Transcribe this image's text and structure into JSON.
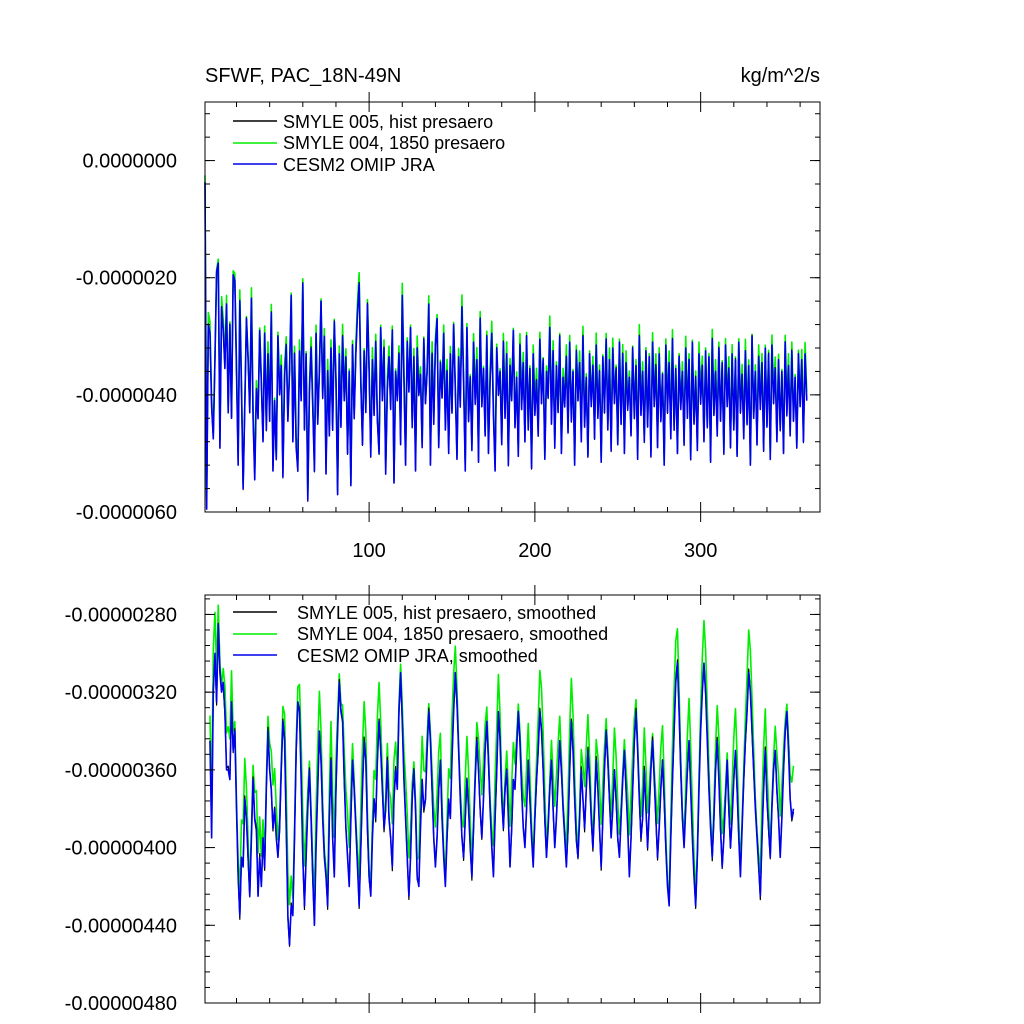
{
  "chart_data": [
    {
      "type": "line",
      "title": "SFWF, PAC_18N-49N",
      "units_label": "kg/m^2/s",
      "xlim": [
        1,
        372
      ],
      "ylim": [
        -6e-06,
        1e-06
      ],
      "x_ticks": [
        100,
        200,
        300
      ],
      "x_tick_labels": [
        "100",
        "200",
        "300"
      ],
      "y_ticks": [
        0,
        -2e-06,
        -4e-06,
        -6e-06
      ],
      "y_tick_labels": [
        "0.0000000",
        "-0.0000020",
        "-0.0000040",
        "-0.0000060"
      ],
      "grid": false,
      "legend_position": "top-left",
      "series": [
        {
          "name": "SMYLE 005, hist presaero",
          "color": "#000000"
        },
        {
          "name": "SMYLE 004, 1850 presaero",
          "color": "#00ee00"
        },
        {
          "name": "CESM2 OMIP JRA",
          "color": "#0000ee"
        }
      ],
      "x_start": 1,
      "values": [
        -3.7e-07,
        -5.95e-06,
        -2.8e-06,
        -2.95e-06,
        -4.2e-06,
        -4.75e-06,
        -3.4e-06,
        -1.9e-06,
        -1.75e-06,
        -4.9e-06,
        -2.5e-06,
        -2.9e-06,
        -3.55e-06,
        -2.45e-06,
        -4.3e-06,
        -2.8e-06,
        -4.4e-06,
        -1.95e-06,
        -2.05e-06,
        -3.6e-06,
        -5.2e-06,
        -2.4e-06,
        -3.9e-06,
        -5.6e-06,
        -4.2e-06,
        -2.7e-06,
        -3.4e-06,
        -4.3e-06,
        -2.35e-06,
        -4.4e-06,
        -5.45e-06,
        -3.9e-06,
        -4.4e-06,
        -2.9e-06,
        -3.8e-06,
        -4.8e-06,
        -2.95e-06,
        -4.6e-06,
        -3.3e-06,
        -4.45e-06,
        -2.6e-06,
        -5.3e-06,
        -4.1e-06,
        -5.1e-06,
        -3e-06,
        -4e-06,
        -3.5e-06,
        -5.4e-06,
        -3.7e-06,
        -3.15e-06,
        -4.45e-06,
        -3.6e-06,
        -2.3e-06,
        -4.8e-06,
        -3.3e-06,
        -4.9e-06,
        -5.3e-06,
        -3.25e-06,
        -4.1e-06,
        -2.1e-06,
        -4.6e-06,
        -3.3e-06,
        -5.8e-06,
        -3.95e-06,
        -3.2e-06,
        -4.2e-06,
        -5.3e-06,
        -2.95e-06,
        -4.5e-06,
        -3.6e-06,
        -2.4e-06,
        -4.05e-06,
        -3e-06,
        -5.35e-06,
        -3.6e-06,
        -4.7e-06,
        -3.2e-06,
        -4.6e-06,
        -2.75e-06,
        -3.75e-06,
        -5.7e-06,
        -3.3e-06,
        -4.55e-06,
        -3e-06,
        -4.1e-06,
        -3.35e-06,
        -5e-06,
        -3.6e-06,
        -5.55e-06,
        -3.15e-06,
        -4.4e-06,
        -3.3e-06,
        -2.6e-06,
        -2.1e-06,
        -3.8e-06,
        -4.85e-06,
        -3.25e-06,
        -4.3e-06,
        -2.45e-06,
        -3.6e-06,
        -5.05e-06,
        -3.4e-06,
        -4.35e-06,
        -3.1e-06,
        -4.45e-06,
        -5e-06,
        -2.85e-06,
        -4.1e-06,
        -3.2e-06,
        -5.35e-06,
        -3.9e-06,
        -3.35e-06,
        -4.25e-06,
        -2.9e-06,
        -5.5e-06,
        -3.6e-06,
        -4.1e-06,
        -3.3e-06,
        -4.85e-06,
        -2.3e-06,
        -3.7e-06,
        -5.2e-06,
        -3.1e-06,
        -3.95e-06,
        -2.85e-06,
        -4.55e-06,
        -3.35e-06,
        -5.3e-06,
        -3.2e-06,
        -4e-06,
        -3.65e-06,
        -4.9e-06,
        -3.05e-06,
        -4.15e-06,
        -3.6e-06,
        -2.45e-06,
        -5.2e-06,
        -3.3e-06,
        -4.5e-06,
        -3.15e-06,
        -2.7e-06,
        -4.9e-06,
        -3.45e-06,
        -4.05e-06,
        -2.95e-06,
        -4.6e-06,
        -3.6e-06,
        -5e-06,
        -3.3e-06,
        -4.3e-06,
        -2.8e-06,
        -3.9e-06,
        -5.1e-06,
        -3.35e-06,
        -4.2e-06,
        -2.5e-06,
        -3.8e-06,
        -5.3e-06,
        -2.85e-06,
        -4.45e-06,
        -3.7e-06,
        -4.95e-06,
        -3.1e-06,
        -4.15e-06,
        -3.4e-06,
        -5.15e-06,
        -2.7e-06,
        -4.2e-06,
        -3.55e-06,
        -4.7e-06,
        -3e-06,
        -5e-06,
        -3.75e-06,
        -2.95e-06,
        -4.35e-06,
        -5.3e-06,
        -3.2e-06,
        -4e-06,
        -3.6e-06,
        -4.85e-06,
        -3.1e-06,
        -4.4e-06,
        -3.3e-06,
        -5.2e-06,
        -3.5e-06,
        -4.1e-06,
        -2.9e-06,
        -4.55e-06,
        -3.7e-06,
        -5.05e-06,
        -3.15e-06,
        -4.25e-06,
        -3.45e-06,
        -4.8e-06,
        -3e-06,
        -4.6e-06,
        -3.55e-06,
        -5.25e-06,
        -3.3e-06,
        -4.35e-06,
        -3.75e-06,
        -4.7e-06,
        -3.05e-06,
        -4.15e-06,
        -3.4e-06,
        -5.1e-06,
        -3.6e-06,
        -4.05e-06,
        -2.85e-06,
        -4.5e-06,
        -3.25e-06,
        -4.9e-06,
        -3.5e-06,
        -4.3e-06,
        -3e-06,
        -5e-06,
        -3.7e-06,
        -4.2e-06,
        -3.35e-06,
        -4.65e-06,
        -3.1e-06,
        -4.45e-06,
        -3.6e-06,
        -5.2e-06,
        -3.25e-06,
        -4.1e-06,
        -3.45e-06,
        -4.8e-06,
        -3e-06,
        -4.55e-06,
        -3.7e-06,
        -5.05e-06,
        -3.3e-06,
        -4.2e-06,
        -3.5e-06,
        -4.75e-06,
        -3.15e-06,
        -4.4e-06,
        -3.6e-06,
        -5.15e-06,
        -3.35e-06,
        -4.3e-06,
        -3.05e-06,
        -4.6e-06,
        -3.4e-06,
        -4.95e-06,
        -3.2e-06,
        -4.15e-06,
        -3.55e-06,
        -4.85e-06,
        -3.1e-06,
        -4.5e-06,
        -3.3e-06,
        -5e-06,
        -3.45e-06,
        -4.25e-06,
        -3.7e-06,
        -4.7e-06,
        -3.2e-06,
        -4.4e-06,
        -3.5e-06,
        -5.1e-06,
        -3e-06,
        -4.35e-06,
        -3.6e-06,
        -4.8e-06,
        -3.25e-06,
        -4.55e-06,
        -3.35e-06,
        -5.05e-06,
        -3.1e-06,
        -4.2e-06,
        -3.5e-06,
        -4.9e-06,
        -3.3e-06,
        -4.45e-06,
        -3.65e-06,
        -5.2e-06,
        -3.15e-06,
        -4.3e-06,
        -3.45e-06,
        -4.75e-06,
        -3.05e-06,
        -4.6e-06,
        -3.55e-06,
        -5e-06,
        -3.35e-06,
        -4.25e-06,
        -3.6e-06,
        -4.85e-06,
        -3.2e-06,
        -4.4e-06,
        -3.4e-06,
        -5.1e-06,
        -3.1e-06,
        -4.5e-06,
        -3.7e-06,
        -4.95e-06,
        -3.3e-06,
        -4.15e-06,
        -3.5e-06,
        -4.8e-06,
        -3.25e-06,
        -4.55e-06,
        -3.35e-06,
        -5.15e-06,
        -3.05e-06,
        -4.35e-06,
        -3.6e-06,
        -4.7e-06,
        -3.2e-06,
        -4.45e-06,
        -3.45e-06,
        -5e-06,
        -3.15e-06,
        -4.2e-06,
        -3.55e-06,
        -4.9e-06,
        -3.3e-06,
        -4.6e-06,
        -3.4e-06,
        -5.05e-06,
        -3.1e-06,
        -4.3e-06,
        -3.65e-06,
        -4.75e-06,
        -3.25e-06,
        -4.5e-06,
        -3.5e-06,
        -5.2e-06,
        -3e-06,
        -4.4e-06,
        -3.6e-06,
        -4.85e-06,
        -3.35e-06,
        -4.25e-06,
        -3.45e-06,
        -4.95e-06,
        -3.2e-06,
        -4.55e-06,
        -3.3e-06,
        -5.1e-06,
        -3.15e-06,
        -4.15e-06,
        -3.55e-06,
        -4.8e-06,
        -3.4e-06,
        -4.6e-06,
        -3.6e-06,
        -5e-06,
        -3.1e-06,
        -4.35e-06,
        -3.5e-06,
        -4.7e-06,
        -3.25e-06,
        -4.45e-06,
        -3.7e-06,
        -4.9e-06,
        -3.3e-06,
        -4.2e-06,
        -3.4e-06,
        -4.8e-06,
        -3.3e-06,
        -4.1e-06
      ],
      "offset_004": 1.2e-07
    },
    {
      "type": "line",
      "xlim": [
        1,
        372
      ],
      "ylim": [
        -4.8e-06,
        -2.7e-06
      ],
      "x_ticks": [
        100,
        200,
        300
      ],
      "y_ticks": [
        -2.8e-06,
        -3.2e-06,
        -3.6e-06,
        -4e-06,
        -4.4e-06,
        -4.8e-06
      ],
      "y_tick_labels": [
        "-0.00000280",
        "-0.00000320",
        "-0.00000360",
        "-0.00000400",
        "-0.00000440",
        "-0.00000480"
      ],
      "grid": false,
      "legend_position": "top-left",
      "series": [
        {
          "name": "SMYLE 005, hist presaero, smoothed",
          "color": "#000000"
        },
        {
          "name": "SMYLE 004, 1850 presaero, smoothed",
          "color": "#00ee00"
        },
        {
          "name": "CESM2 OMIP JRA, smoothed",
          "color": "#0000ee"
        }
      ],
      "x_start": 4,
      "values": [
        -3.45e-06,
        -3.95e-06,
        -3.2e-06,
        -3e-06,
        -3.25e-06,
        -2.85e-06,
        -3.1e-06,
        -3.2e-06,
        -3.15e-06,
        -3.3e-06,
        -3.6e-06,
        -3.6e-06,
        -3.65e-06,
        -3.25e-06,
        -3.5e-06,
        -3.4e-06,
        -3.8e-06,
        -4.15e-06,
        -4.35e-06,
        -4.05e-06,
        -4.1e-06,
        -3.75e-06,
        -3.85e-06,
        -4.05e-06,
        -4.25e-06,
        -3.95e-06,
        -3.65e-06,
        -3.85e-06,
        -3.9e-06,
        -4.25e-06,
        -4.05e-06,
        -4.2e-06,
        -3.95e-06,
        -4.1e-06,
        -3.7e-06,
        -3.4e-06,
        -3.6e-06,
        -3.7e-06,
        -3.9e-06,
        -3.8e-06,
        -3.95e-06,
        -4.05e-06,
        -3.9e-06,
        -3.6e-06,
        -3.35e-06,
        -3.45e-06,
        -3.9e-06,
        -4.35e-06,
        -4.5e-06,
        -4.3e-06,
        -4.35e-06,
        -3.95e-06,
        -3.5e-06,
        -3.25e-06,
        -3.3e-06,
        -3.65e-06,
        -4.05e-06,
        -4.3e-06,
        -4.05e-06,
        -3.8e-06,
        -3.6e-06,
        -3.85e-06,
        -4.15e-06,
        -4.4e-06,
        -4e-06,
        -3.7e-06,
        -3.4e-06,
        -3.55e-06,
        -3.85e-06,
        -4.05e-06,
        -4.15e-06,
        -4.3e-06,
        -3.85e-06,
        -3.55e-06,
        -3.95e-06,
        -4.15e-06,
        -3.7e-06,
        -3.4e-06,
        -3.15e-06,
        -3.3e-06,
        -3.35e-06,
        -3.65e-06,
        -3.9e-06,
        -4.05e-06,
        -4.2e-06,
        -3.85e-06,
        -3.55e-06,
        -3.7e-06,
        -3.9e-06,
        -4.1e-06,
        -4.3e-06,
        -4e-06,
        -3.7e-06,
        -3.45e-06,
        -3.55e-06,
        -3.9e-06,
        -4.15e-06,
        -4.25e-06,
        -3.95e-06,
        -3.75e-06,
        -3.85e-06,
        -3.55e-06,
        -3.35e-06,
        -3.5e-06,
        -3.7e-06,
        -3.9e-06,
        -3.8e-06,
        -3.55e-06,
        -3.85e-06,
        -3.95e-06,
        -4.1e-06,
        -3.75e-06,
        -3.6e-06,
        -3.7e-06,
        -3.3e-06,
        -3.1e-06,
        -3.35e-06,
        -3.65e-06,
        -3.85e-06,
        -4.05e-06,
        -4.25e-06,
        -4.05e-06,
        -3.75e-06,
        -3.6e-06,
        -3.8e-06,
        -4.15e-06,
        -4.2e-06,
        -3.9e-06,
        -3.65e-06,
        -3.8e-06,
        -3.75e-06,
        -3.5e-06,
        -3.3e-06,
        -3.45e-06,
        -3.7e-06,
        -3.95e-06,
        -4.1e-06,
        -3.95e-06,
        -3.7e-06,
        -3.55e-06,
        -3.85e-06,
        -4.05e-06,
        -4.2e-06,
        -3.95e-06,
        -3.75e-06,
        -3.85e-06,
        -3.55e-06,
        -3.3e-06,
        -3.1e-06,
        -3.25e-06,
        -3.5e-06,
        -3.75e-06,
        -3.95e-06,
        -4.05e-06,
        -3.85e-06,
        -3.65e-06,
        -3.8e-06,
        -4e-06,
        -4.15e-06,
        -3.9e-06,
        -3.65e-06,
        -3.45e-06,
        -3.6e-06,
        -3.8e-06,
        -3.95e-06,
        -3.75e-06,
        -3.5e-06,
        -3.35e-06,
        -3.55e-06,
        -3.8e-06,
        -4e-06,
        -4.15e-06,
        -3.85e-06,
        -3.6e-06,
        -3.3e-06,
        -3.45e-06,
        -3.75e-06,
        -3.9e-06,
        -3.7e-06,
        -3.6e-06,
        -3.85e-06,
        -4.1e-06,
        -3.9e-06,
        -3.65e-06,
        -3.7e-06,
        -3.5e-06,
        -3.3e-06,
        -3.45e-06,
        -3.7e-06,
        -3.9e-06,
        -4e-06,
        -3.8e-06,
        -3.55e-06,
        -3.75e-06,
        -3.95e-06,
        -4.1e-06,
        -3.85e-06,
        -3.65e-06,
        -3.5e-06,
        -3.3e-06,
        -3.4e-06,
        -3.6e-06,
        -3.85e-06,
        -4.05e-06,
        -3.9e-06,
        -3.7e-06,
        -3.55e-06,
        -3.8e-06,
        -4e-06,
        -3.85e-06,
        -3.65e-06,
        -3.45e-06,
        -3.6e-06,
        -3.8e-06,
        -3.95e-06,
        -4.1e-06,
        -3.9e-06,
        -3.6e-06,
        -3.35e-06,
        -3.5e-06,
        -3.75e-06,
        -3.95e-06,
        -4.05e-06,
        -3.85e-06,
        -3.6e-06,
        -3.75e-06,
        -3.9e-06,
        -3.7e-06,
        -3.5e-06,
        -3.65e-06,
        -3.85e-06,
        -4e-06,
        -3.8e-06,
        -3.55e-06,
        -3.7e-06,
        -3.9e-06,
        -4.1e-06,
        -3.85e-06,
        -3.6e-06,
        -3.4e-06,
        -3.55e-06,
        -3.75e-06,
        -3.95e-06,
        -3.8e-06,
        -3.6e-06,
        -3.75e-06,
        -3.95e-06,
        -4.05e-06,
        -3.85e-06,
        -3.65e-06,
        -3.5e-06,
        -3.7e-06,
        -3.9e-06,
        -4.15e-06,
        -3.95e-06,
        -3.7e-06,
        -3.45e-06,
        -3.3e-06,
        -3.5e-06,
        -3.75e-06,
        -3.95e-06,
        -3.85e-06,
        -3.6e-06,
        -3.8e-06,
        -4e-06,
        -3.8e-06,
        -3.6e-06,
        -3.45e-06,
        -3.65e-06,
        -3.85e-06,
        -4.05e-06,
        -3.9e-06,
        -3.7e-06,
        -3.55e-06,
        -3.75e-06,
        -4e-06,
        -4.2e-06,
        -4.3e-06,
        -3.95e-06,
        -3.65e-06,
        -3.4e-06,
        -3.15e-06,
        -3.05e-06,
        -3.3e-06,
        -3.6e-06,
        -3.85e-06,
        -4e-06,
        -3.8e-06,
        -3.6e-06,
        -3.45e-06,
        -3.7e-06,
        -3.95e-06,
        -4.15e-06,
        -4.3e-06,
        -4.05e-06,
        -3.7e-06,
        -3.4e-06,
        -3.2e-06,
        -3.05e-06,
        -3.2e-06,
        -3.45e-06,
        -3.7e-06,
        -3.9e-06,
        -4.05e-06,
        -3.85e-06,
        -3.6e-06,
        -3.45e-06,
        -3.65e-06,
        -3.9e-06,
        -4.1e-06,
        -3.95e-06,
        -3.75e-06,
        -3.55e-06,
        -3.8e-06,
        -4e-06,
        -3.85e-06,
        -3.65e-06,
        -3.5e-06,
        -3.7e-06,
        -3.95e-06,
        -4.15e-06,
        -3.9e-06,
        -3.65e-06,
        -3.45e-06,
        -3.3e-06,
        -3.1e-06,
        -3.2e-06,
        -3.4e-06,
        -3.6e-06,
        -3.8e-06,
        -3.95e-06,
        -4.1e-06,
        -4.25e-06,
        -3.95e-06,
        -3.7e-06,
        -3.5e-06,
        -3.75e-06,
        -3.9e-06,
        -4.05e-06,
        -3.8e-06,
        -3.6e-06,
        -3.5e-06,
        -3.7e-06,
        -3.85e-06,
        -4.05e-06,
        -3.85e-06,
        -3.6e-06,
        -3.4e-06,
        -3.3e-06,
        -3.5e-06,
        -3.75e-06,
        -3.85e-06,
        -3.8e-06
      ],
      "offset_004": 1.3e-07
    }
  ]
}
